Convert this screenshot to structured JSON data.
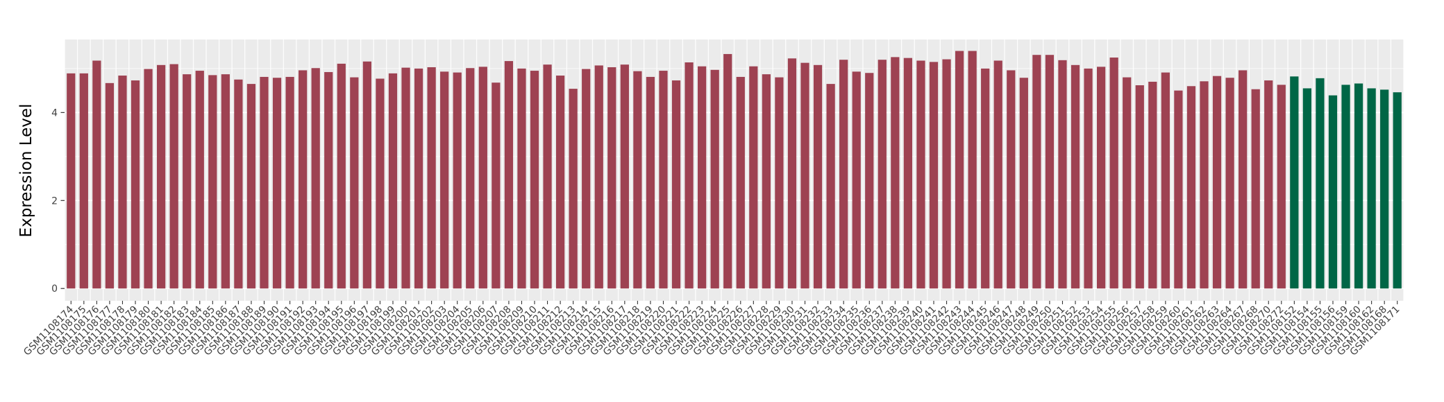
{
  "figure": {
    "background_color": "#FFFFFF",
    "panel_background_color": "#EBEBEB",
    "grid_color": "#FFFFFF",
    "axis_tick_color": "#333333",
    "axis_text_color": "#404040",
    "axis_title_color": "#000000"
  },
  "chart_data": {
    "type": "bar",
    "title": "",
    "xlabel": "",
    "ylabel": "Expression Level",
    "ylim": [
      -0.28,
      5.66
    ],
    "yticks": [
      0,
      2,
      4
    ],
    "yticks_minor": [
      1,
      3,
      5
    ],
    "grid": true,
    "legend_position": "none",
    "groups": [
      {
        "name": "red-group",
        "color": "#9E4252",
        "start_index": 0,
        "end_index": 94
      },
      {
        "name": "green-group",
        "color": "#006646",
        "start_index": 95,
        "end_index": 103
      }
    ],
    "categories": [
      "GSM1108174",
      "GSM1108175",
      "GSM1108176",
      "GSM1108177",
      "GSM1108178",
      "GSM1108179",
      "GSM1108180",
      "GSM1108181",
      "GSM1108182",
      "GSM1108183",
      "GSM1108184",
      "GSM1108185",
      "GSM1108186",
      "GSM1108187",
      "GSM1108188",
      "GSM1108189",
      "GSM1108190",
      "GSM1108191",
      "GSM1108192",
      "GSM1108193",
      "GSM1108194",
      "GSM1108195",
      "GSM1108196",
      "GSM1108197",
      "GSM1108198",
      "GSM1108199",
      "GSM1108200",
      "GSM1108201",
      "GSM1108202",
      "GSM1108203",
      "GSM1108204",
      "GSM1108205",
      "GSM1108206",
      "GSM1108207",
      "GSM1108208",
      "GSM1108209",
      "GSM1108210",
      "GSM1108211",
      "GSM1108212",
      "GSM1108213",
      "GSM1108214",
      "GSM1108215",
      "GSM1108216",
      "GSM1108217",
      "GSM1108218",
      "GSM1108219",
      "GSM1108220",
      "GSM1108221",
      "GSM1108222",
      "GSM1108223",
      "GSM1108224",
      "GSM1108225",
      "GSM1108226",
      "GSM1108227",
      "GSM1108228",
      "GSM1108229",
      "GSM1108230",
      "GSM1108231",
      "GSM1108232",
      "GSM1108233",
      "GSM1108234",
      "GSM1108235",
      "GSM1108236",
      "GSM1108237",
      "GSM1108238",
      "GSM1108239",
      "GSM1108240",
      "GSM1108241",
      "GSM1108242",
      "GSM1108243",
      "GSM1108244",
      "GSM1108245",
      "GSM1108246",
      "GSM1108247",
      "GSM1108248",
      "GSM1108249",
      "GSM1108250",
      "GSM1108251",
      "GSM1108252",
      "GSM1108253",
      "GSM1108254",
      "GSM1108255",
      "GSM1108256",
      "GSM1108257",
      "GSM1108258",
      "GSM1108259",
      "GSM1108260",
      "GSM1108261",
      "GSM1108262",
      "GSM1108263",
      "GSM1108264",
      "GSM1108267",
      "GSM1108268",
      "GSM1108270",
      "GSM1108272",
      "GSM1108152",
      "GSM1108154",
      "GSM1108155",
      "GSM1108156",
      "GSM1108159",
      "GSM1108160",
      "GSM1108162",
      "GSM1108168",
      "GSM1108171"
    ],
    "values": [
      4.89,
      4.89,
      5.18,
      4.67,
      4.84,
      4.73,
      4.99,
      5.08,
      5.1,
      4.87,
      4.95,
      4.85,
      4.87,
      4.75,
      4.65,
      4.81,
      4.79,
      4.81,
      4.96,
      5.01,
      4.92,
      5.11,
      4.8,
      5.16,
      4.77,
      4.89,
      5.02,
      5.0,
      5.03,
      4.93,
      4.91,
      5.01,
      5.04,
      4.68,
      5.17,
      5.0,
      4.95,
      5.09,
      4.84,
      4.54,
      4.99,
      5.07,
      5.03,
      5.09,
      4.94,
      4.81,
      4.95,
      4.73,
      5.14,
      5.05,
      4.97,
      5.33,
      4.81,
      5.05,
      4.87,
      4.8,
      5.23,
      5.13,
      5.08,
      4.65,
      5.2,
      4.93,
      4.9,
      5.2,
      5.26,
      5.24,
      5.18,
      5.15,
      5.21,
      5.4,
      5.4,
      5.0,
      5.18,
      4.96,
      4.79,
      5.31,
      5.31,
      5.19,
      5.08,
      5.0,
      5.04,
      5.25,
      4.8,
      4.62,
      4.7,
      4.91,
      4.5,
      4.6,
      4.71,
      4.83,
      4.79,
      4.96,
      4.53,
      4.73,
      4.63,
      4.82,
      4.55,
      4.78,
      4.39,
      4.63,
      4.66,
      4.55,
      4.52,
      4.46
    ]
  }
}
